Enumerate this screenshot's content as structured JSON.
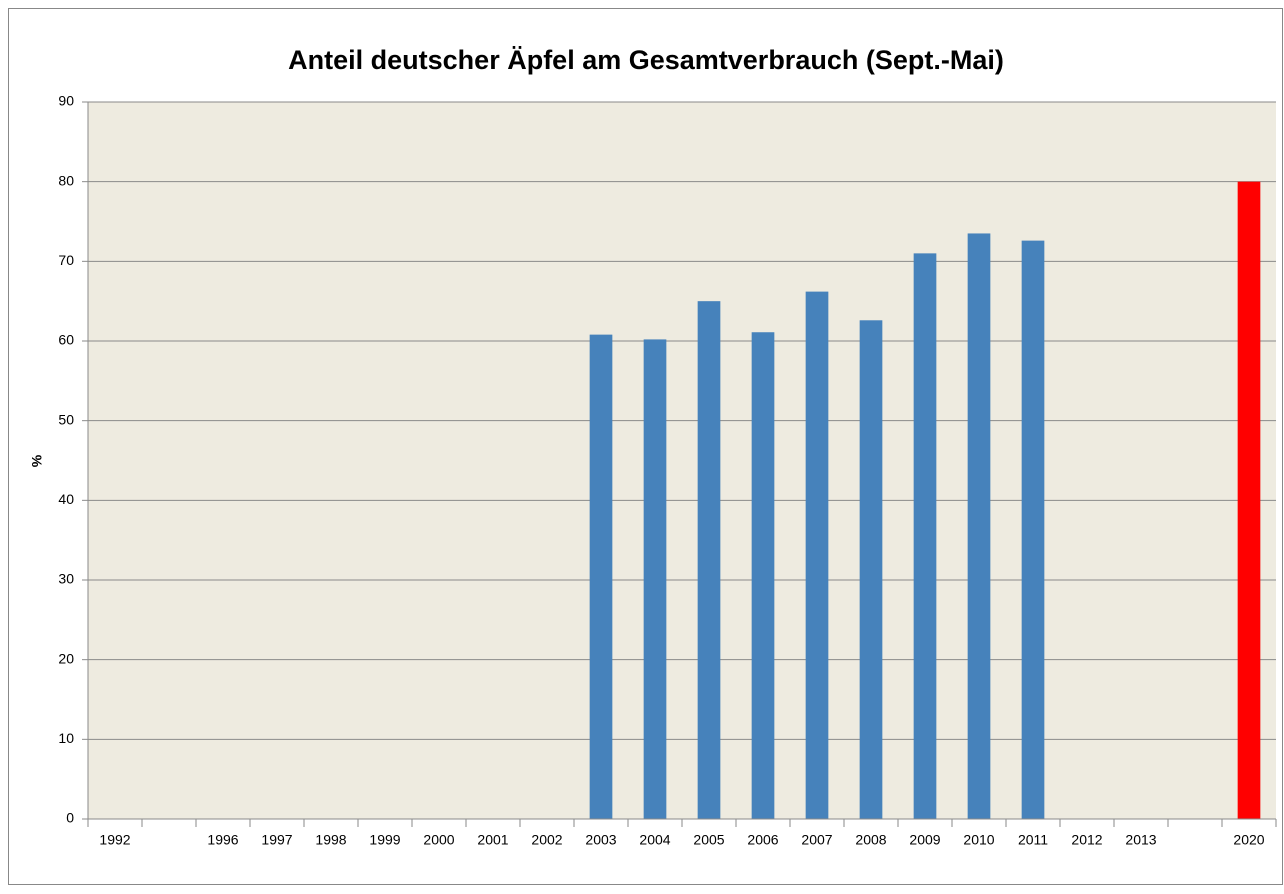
{
  "chart_data": {
    "type": "bar",
    "title": "Anteil deutscher Äpfel am Gesamtverbrauch (Sept.-Mai)",
    "y_label": "%",
    "categories": [
      "1992",
      null,
      "1996",
      "1997",
      "1998",
      "1999",
      "2000",
      "2001",
      "2002",
      "2003",
      "2004",
      "2005",
      "2006",
      "2007",
      "2008",
      "2009",
      "2010",
      "2011",
      "2012",
      "2013",
      null,
      "2020"
    ],
    "values": [
      null,
      null,
      null,
      null,
      null,
      null,
      null,
      null,
      null,
      60.8,
      60.2,
      65,
      61.1,
      66.2,
      62.6,
      71,
      73.5,
      72.6,
      null,
      null,
      null,
      80
    ],
    "colors": [
      "#4682bb",
      "#4682bb",
      "#4682bb",
      "#4682bb",
      "#4682bb",
      "#4682bb",
      "#4682bb",
      "#4682bb",
      "#4682bb",
      "#4682bb",
      "#4682bb",
      "#4682bb",
      "#4682bb",
      "#4682bb",
      "#4682bb",
      "#4682bb",
      "#4682bb",
      "#4682bb",
      "#4682bb",
      "#4682bb",
      "#4682bb",
      "#ff0000"
    ],
    "ylim": [
      0,
      90
    ],
    "yticks": [
      0,
      10,
      20,
      30,
      40,
      50,
      60,
      70,
      80,
      90
    ],
    "grid": true
  }
}
